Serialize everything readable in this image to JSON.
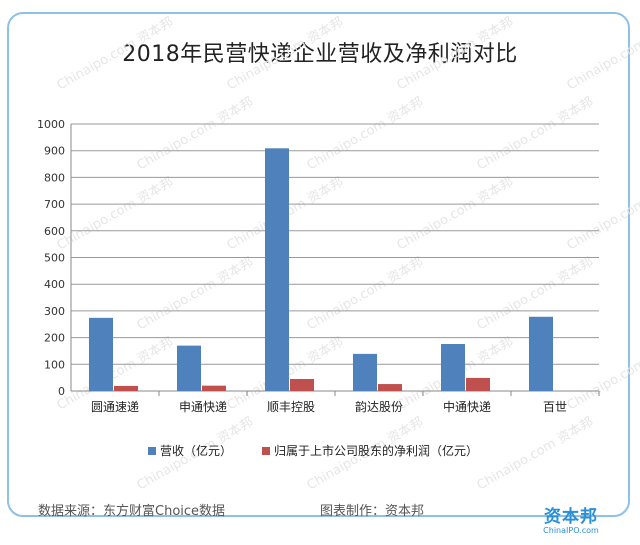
{
  "chart_data": {
    "type": "bar",
    "title": "2018年民营快递企业营收及净利润对比",
    "categories": [
      "圆通速递",
      "申通快递",
      "顺丰控股",
      "韵达股份",
      "中通快递",
      "百世"
    ],
    "series": [
      {
        "name": "营收（亿元）",
        "color": "#4f81bd",
        "values": [
          274,
          170,
          909,
          139,
          176,
          278
        ]
      },
      {
        "name": "归属于上市公司股东的净利润（亿元）",
        "color": "#c0504d",
        "values": [
          19,
          20,
          45,
          26,
          49,
          null
        ]
      }
    ],
    "ylim": [
      0,
      1000
    ],
    "yticks": [
      0,
      100,
      200,
      300,
      400,
      500,
      600,
      700,
      800,
      900,
      1000
    ],
    "grid": true,
    "legend_position": "bottom"
  },
  "footer": {
    "source": "数据来源：东方财富Choice数据",
    "maker": "图表制作：资本邦"
  },
  "logo": {
    "main": "资本邦",
    "sub": "ChinaIPO.com"
  },
  "watermark": "Chinaipo.com 资本邦"
}
